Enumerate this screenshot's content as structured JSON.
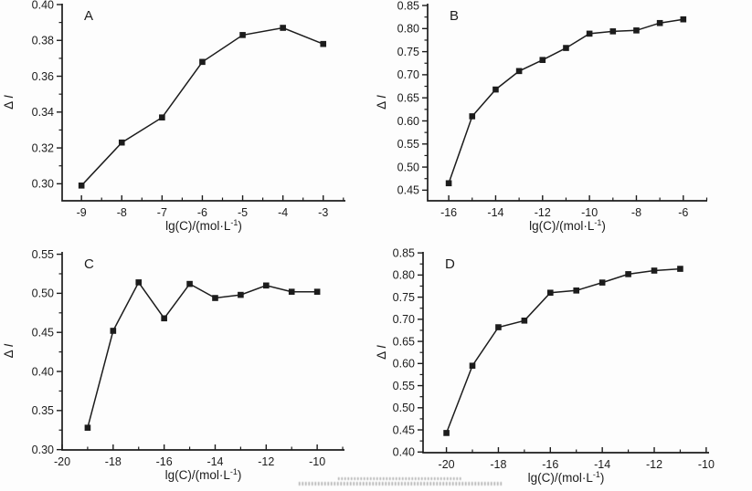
{
  "figure": {
    "background": "#fdfdfd",
    "ink_color": "#1c1c1c",
    "panel_labels": [
      "A",
      "B",
      "C",
      "D"
    ]
  },
  "chart_data": [
    {
      "panel": "A",
      "type": "line",
      "xlabel": "lg(C)/(mol·L⁻¹)",
      "ylabel": "ΔI",
      "x": [
        -9,
        -8,
        -7,
        -6,
        -5,
        -4,
        -3
      ],
      "y": [
        0.299,
        0.323,
        0.337,
        0.368,
        0.383,
        0.387,
        0.378
      ],
      "xticks": [
        -9,
        -8,
        -7,
        -6,
        -5,
        -4,
        -3
      ],
      "yticks": [
        0.3,
        0.32,
        0.34,
        0.36,
        0.38,
        0.4
      ],
      "x_minor_step": 0.5,
      "y_minor_step": 0.01,
      "xlim": [
        -9.48,
        -2.45
      ],
      "ylim": [
        0.2905,
        0.4005
      ],
      "y_tick_decimals": 2,
      "marker": "square",
      "color": "#1c1c1c",
      "grid": false,
      "legend": null
    },
    {
      "panel": "B",
      "type": "line",
      "xlabel": "lg(C)/(mol·L⁻¹)",
      "ylabel": "ΔI",
      "x": [
        -16,
        -15,
        -14,
        -13,
        -12,
        -11,
        -10,
        -9,
        -8,
        -7,
        -6
      ],
      "y": [
        0.465,
        0.61,
        0.668,
        0.708,
        0.732,
        0.758,
        0.789,
        0.794,
        0.796,
        0.812,
        0.82
      ],
      "xticks": [
        -16,
        -14,
        -12,
        -10,
        -8,
        -6
      ],
      "yticks": [
        0.45,
        0.5,
        0.55,
        0.6,
        0.65,
        0.7,
        0.75,
        0.8,
        0.85
      ],
      "x_minor_step": 1,
      "y_minor_step": 0.025,
      "xlim": [
        -16.9,
        -4.98
      ],
      "ylim": [
        0.427,
        0.854
      ],
      "y_tick_decimals": 2,
      "marker": "square",
      "color": "#1c1c1c",
      "grid": false,
      "legend": null
    },
    {
      "panel": "C",
      "type": "line",
      "xlabel": "lg(C)/(mol·L⁻¹)",
      "ylabel": "ΔI",
      "x": [
        -19,
        -18,
        -17,
        -16,
        -15,
        -14,
        -13,
        -12,
        -11,
        -10
      ],
      "y": [
        0.328,
        0.452,
        0.514,
        0.468,
        0.512,
        0.494,
        0.498,
        0.51,
        0.502,
        0.502
      ],
      "xticks": [
        -20,
        -18,
        -16,
        -14,
        -12,
        -10
      ],
      "yticks": [
        0.3,
        0.35,
        0.4,
        0.45,
        0.5,
        0.55
      ],
      "x_minor_step": 1,
      "y_minor_step": 0.025,
      "xlim": [
        -20.0,
        -8.93
      ],
      "ylim": [
        0.2996,
        0.553
      ],
      "y_tick_decimals": 2,
      "marker": "square",
      "color": "#1c1c1c",
      "grid": false,
      "legend": null
    },
    {
      "panel": "D",
      "type": "line",
      "xlabel": "lg(C)/(mol·L⁻¹)",
      "ylabel": "ΔI",
      "x": [
        -20,
        -19,
        -18,
        -17,
        -16,
        -15,
        -14,
        -13,
        -12,
        -11
      ],
      "y": [
        0.443,
        0.595,
        0.682,
        0.697,
        0.76,
        0.765,
        0.783,
        0.802,
        0.81,
        0.814
      ],
      "xticks": [
        -20,
        -18,
        -16,
        -14,
        -12,
        -10
      ],
      "yticks": [
        0.4,
        0.45,
        0.5,
        0.55,
        0.6,
        0.65,
        0.7,
        0.75,
        0.8,
        0.85
      ],
      "x_minor_step": 1,
      "y_minor_step": 0.025,
      "xlim": [
        -20.9,
        -9.89
      ],
      "ylim": [
        0.3985,
        0.8523
      ],
      "y_tick_decimals": 2,
      "marker": "square",
      "color": "#1c1c1c",
      "grid": false,
      "legend": null
    }
  ]
}
